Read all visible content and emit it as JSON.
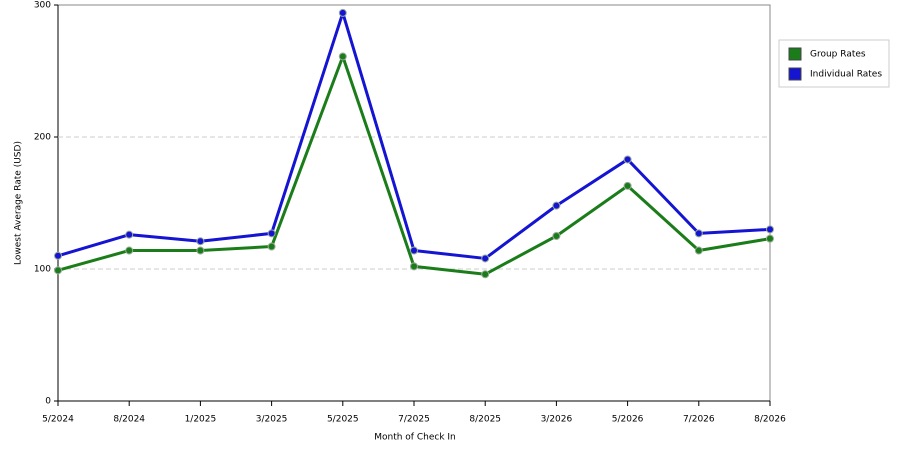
{
  "chart_data": {
    "type": "line",
    "x_label": "Month of Check In",
    "y_label": "Lowest Average Rate (USD)",
    "categories": [
      "5/2024",
      "8/2024",
      "1/2025",
      "3/2025",
      "5/2025",
      "7/2025",
      "8/2025",
      "3/2026",
      "5/2026",
      "7/2026",
      "8/2026"
    ],
    "series": [
      {
        "name": "Group Rates",
        "color": "#1a7d1a",
        "values": [
          99,
          114,
          114,
          117,
          261,
          102,
          96,
          125,
          163,
          114,
          123
        ]
      },
      {
        "name": "Individual Rates",
        "color": "#1414d2",
        "values": [
          110,
          126,
          121,
          127,
          294,
          114,
          108,
          148,
          183,
          127,
          130
        ]
      }
    ],
    "ylim": [
      0,
      300
    ],
    "yticks": [
      0,
      100,
      200,
      300
    ],
    "grid": true,
    "legend": "right"
  }
}
